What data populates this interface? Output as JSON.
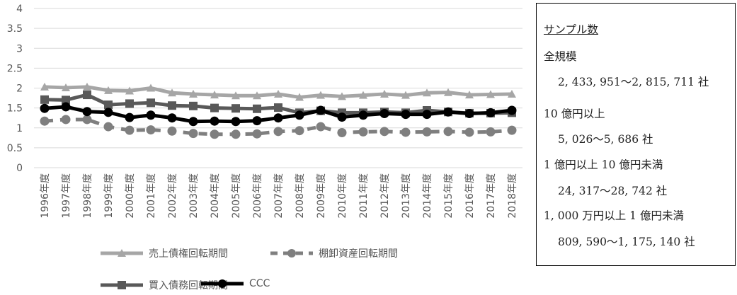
{
  "chart_data": {
    "type": "line",
    "categories": [
      "1996年度",
      "1997年度",
      "1998年度",
      "1999年度",
      "2000年度",
      "2001年度",
      "2002年度",
      "2003年度",
      "2004年度",
      "2005年度",
      "2006年度",
      "2007年度",
      "2008年度",
      "2009年度",
      "2010年度",
      "2011年度",
      "2012年度",
      "2013年度",
      "2014年度",
      "2015年度",
      "2016年度",
      "2017年度",
      "2018年度"
    ],
    "y_ticks": [
      "0",
      "0.5",
      "1",
      "1.5",
      "2",
      "2.5",
      "3",
      "3.5",
      "4"
    ],
    "ylim": [
      0,
      4
    ],
    "grid": true,
    "legend_position": "bottom",
    "series": [
      {
        "name": "売上債権回転期間",
        "color": "#a6a6a6",
        "marker": "triangle",
        "dash": false,
        "values": [
          2.03,
          2.01,
          2.03,
          1.94,
          1.93,
          2.0,
          1.88,
          1.85,
          1.83,
          1.81,
          1.81,
          1.85,
          1.77,
          1.82,
          1.79,
          1.82,
          1.85,
          1.82,
          1.88,
          1.89,
          1.83,
          1.84,
          1.85
        ]
      },
      {
        "name": "棚卸資産回転期間",
        "color": "#7f7f7f",
        "marker": "circle",
        "dash": true,
        "values": [
          1.17,
          1.21,
          1.21,
          1.03,
          0.94,
          0.95,
          0.92,
          0.86,
          0.84,
          0.84,
          0.85,
          0.91,
          0.93,
          1.03,
          0.88,
          0.9,
          0.91,
          0.89,
          0.9,
          0.91,
          0.89,
          0.9,
          0.94
        ]
      },
      {
        "name": "買入債務回転期間",
        "color": "#595959",
        "marker": "square",
        "dash": false,
        "values": [
          1.71,
          1.7,
          1.83,
          1.58,
          1.61,
          1.63,
          1.56,
          1.55,
          1.5,
          1.49,
          1.48,
          1.51,
          1.38,
          1.43,
          1.38,
          1.38,
          1.4,
          1.38,
          1.44,
          1.4,
          1.37,
          1.37,
          1.38
        ]
      },
      {
        "name": "CCC",
        "color": "#000000",
        "marker": "circle",
        "dash": false,
        "values": [
          1.49,
          1.53,
          1.41,
          1.39,
          1.26,
          1.32,
          1.25,
          1.16,
          1.17,
          1.16,
          1.18,
          1.25,
          1.32,
          1.44,
          1.27,
          1.32,
          1.36,
          1.34,
          1.34,
          1.4,
          1.36,
          1.38,
          1.44
        ]
      }
    ]
  },
  "legend": [
    {
      "label": "売上債権回転期間"
    },
    {
      "label": "棚卸資産回転期間"
    },
    {
      "label": "買入債務回転期間"
    },
    {
      "label": "CCC"
    }
  ],
  "sample_box": {
    "title": "サンプル数",
    "lines": [
      "全規模",
      "2, 433, 951～2, 815, 711 社",
      "10 億円以上",
      "5, 026～5, 686 社",
      "1 億円以上 10 億円未満",
      "24, 317～28, 742 社",
      "1, 000 万円以上 1 億円未満",
      "809, 590～1, 175, 140 社"
    ]
  }
}
